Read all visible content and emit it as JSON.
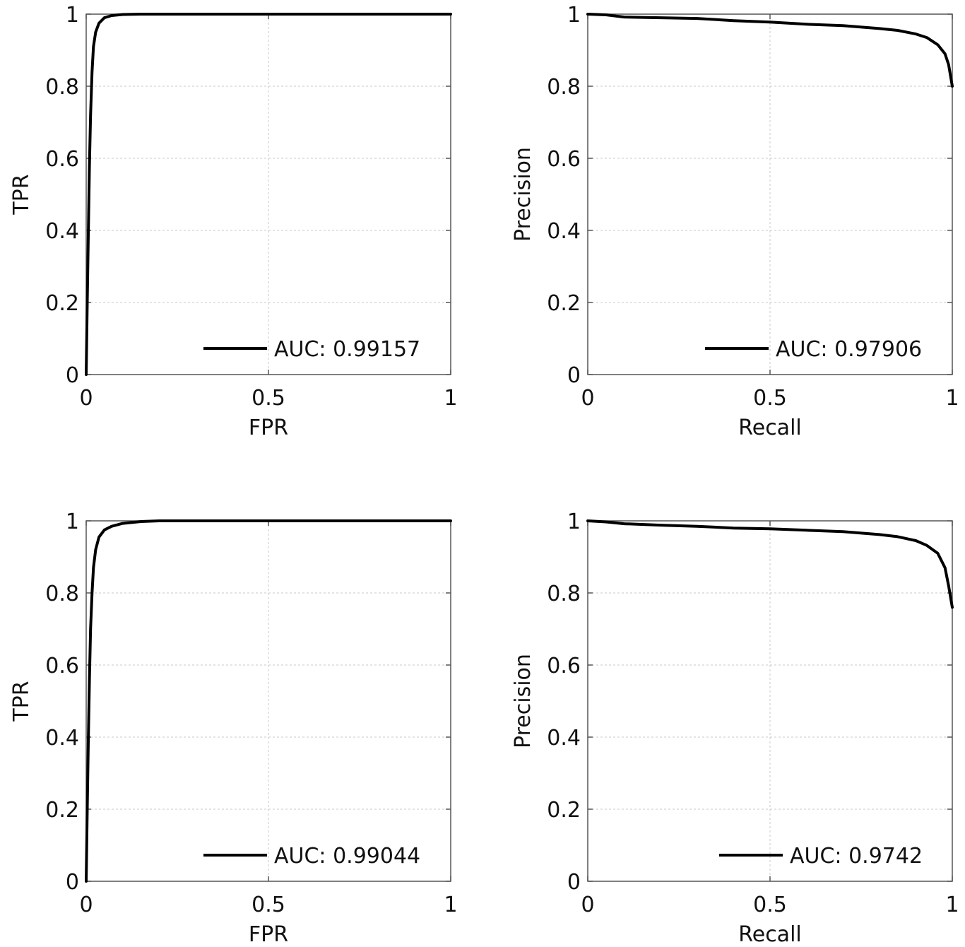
{
  "chart_data": [
    {
      "type": "line",
      "xlabel": "FPR",
      "ylabel": "TPR",
      "xlim": [
        0,
        1
      ],
      "ylim": [
        0,
        1
      ],
      "xticks": [
        0,
        0.5,
        1
      ],
      "xtick_labels": [
        "0",
        "0.5",
        "1"
      ],
      "yticks": [
        0,
        0.2,
        0.4,
        0.6,
        0.8,
        1
      ],
      "ytick_labels": [
        "0",
        "0.2",
        "0.4",
        "0.6",
        "0.8",
        "1"
      ],
      "grid": true,
      "legend_position": "bottom-right",
      "series": [
        {
          "name": "AUC: 0.99157",
          "x": [
            0,
            0.003,
            0.006,
            0.009,
            0.012,
            0.016,
            0.02,
            0.026,
            0.035,
            0.05,
            0.07,
            0.1,
            0.15,
            0.3,
            0.6,
            1
          ],
          "y": [
            0,
            0.2,
            0.4,
            0.58,
            0.72,
            0.84,
            0.91,
            0.95,
            0.975,
            0.99,
            0.996,
            0.999,
            1,
            1,
            1,
            1
          ]
        }
      ]
    },
    {
      "type": "line",
      "xlabel": "Recall",
      "ylabel": "Precision",
      "xlim": [
        0,
        1
      ],
      "ylim": [
        0,
        1
      ],
      "xticks": [
        0,
        0.5,
        1
      ],
      "xtick_labels": [
        "0",
        "0.5",
        "1"
      ],
      "yticks": [
        0,
        0.2,
        0.4,
        0.6,
        0.8,
        1
      ],
      "ytick_labels": [
        "0",
        "0.2",
        "0.4",
        "0.6",
        "0.8",
        "1"
      ],
      "grid": true,
      "legend_position": "bottom-right",
      "series": [
        {
          "name": "AUC: 0.97906",
          "x": [
            0,
            0.05,
            0.1,
            0.2,
            0.3,
            0.4,
            0.5,
            0.6,
            0.7,
            0.8,
            0.85,
            0.9,
            0.93,
            0.96,
            0.98,
            0.99,
            1
          ],
          "y": [
            1,
            0.998,
            0.992,
            0.99,
            0.988,
            0.982,
            0.978,
            0.972,
            0.968,
            0.96,
            0.955,
            0.945,
            0.935,
            0.915,
            0.89,
            0.86,
            0.8
          ]
        }
      ]
    },
    {
      "type": "line",
      "xlabel": "FPR",
      "ylabel": "TPR",
      "xlim": [
        0,
        1
      ],
      "ylim": [
        0,
        1
      ],
      "xticks": [
        0,
        0.5,
        1
      ],
      "xtick_labels": [
        "0",
        "0.5",
        "1"
      ],
      "yticks": [
        0,
        0.2,
        0.4,
        0.6,
        0.8,
        1
      ],
      "ytick_labels": [
        "0",
        "0.2",
        "0.4",
        "0.6",
        "0.8",
        "1"
      ],
      "grid": true,
      "legend_position": "bottom-right",
      "series": [
        {
          "name": "AUC: 0.99044",
          "x": [
            0,
            0.003,
            0.006,
            0.009,
            0.012,
            0.016,
            0.02,
            0.026,
            0.035,
            0.05,
            0.07,
            0.1,
            0.15,
            0.2,
            0.3,
            0.6,
            1
          ],
          "y": [
            0,
            0.2,
            0.4,
            0.56,
            0.7,
            0.8,
            0.87,
            0.92,
            0.955,
            0.975,
            0.985,
            0.993,
            0.998,
            1,
            1,
            1,
            1
          ]
        }
      ]
    },
    {
      "type": "line",
      "xlabel": "Recall",
      "ylabel": "Precision",
      "xlim": [
        0,
        1
      ],
      "ylim": [
        0,
        1
      ],
      "xticks": [
        0,
        0.5,
        1
      ],
      "xtick_labels": [
        "0",
        "0.5",
        "1"
      ],
      "yticks": [
        0,
        0.2,
        0.4,
        0.6,
        0.8,
        1
      ],
      "ytick_labels": [
        "0",
        "0.2",
        "0.4",
        "0.6",
        "0.8",
        "1"
      ],
      "grid": true,
      "legend_position": "bottom-right",
      "series": [
        {
          "name": "AUC: 0.9742",
          "x": [
            0,
            0.05,
            0.1,
            0.2,
            0.3,
            0.4,
            0.5,
            0.6,
            0.7,
            0.8,
            0.85,
            0.9,
            0.93,
            0.96,
            0.98,
            0.99,
            1
          ],
          "y": [
            1,
            0.997,
            0.992,
            0.988,
            0.985,
            0.98,
            0.978,
            0.974,
            0.97,
            0.962,
            0.956,
            0.945,
            0.932,
            0.91,
            0.87,
            0.82,
            0.76
          ]
        }
      ]
    }
  ]
}
